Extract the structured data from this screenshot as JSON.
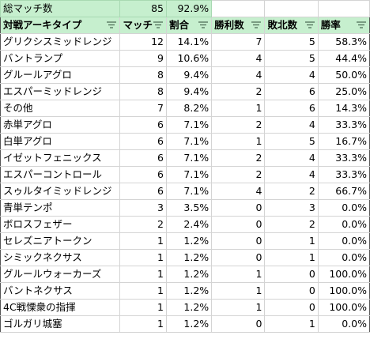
{
  "summary": {
    "label": "総マッチ数",
    "matches": "85",
    "percent": "92.9%"
  },
  "headers": [
    {
      "label": "対戦アーキタイプ",
      "filter_icon": "filter-dropdown-icon"
    },
    {
      "label": "マッチ",
      "filter_icon": "filter-dropdown-icon"
    },
    {
      "label": "割合",
      "filter_icon": "filter-dropdown-icon"
    },
    {
      "label": "勝利数",
      "filter_icon": "filter-dropdown-icon"
    },
    {
      "label": "敗北数",
      "filter_icon": "filter-dropdown-icon"
    },
    {
      "label": "勝率",
      "filter_icon": "filter-dropdown-icon"
    }
  ],
  "rows": [
    [
      "グリクシスミッドレンジ",
      "12",
      "14.1%",
      "7",
      "5",
      "58.3%"
    ],
    [
      "バントランプ",
      "9",
      "10.6%",
      "4",
      "5",
      "44.4%"
    ],
    [
      "グルールアグロ",
      "8",
      "9.4%",
      "4",
      "4",
      "50.0%"
    ],
    [
      "エスパーミッドレンジ",
      "8",
      "9.4%",
      "2",
      "6",
      "25.0%"
    ],
    [
      "その他",
      "7",
      "8.2%",
      "1",
      "6",
      "14.3%"
    ],
    [
      "赤単アグロ",
      "6",
      "7.1%",
      "2",
      "4",
      "33.3%"
    ],
    [
      "白単アグロ",
      "6",
      "7.1%",
      "1",
      "5",
      "16.7%"
    ],
    [
      "イゼットフェニックス",
      "6",
      "7.1%",
      "2",
      "4",
      "33.3%"
    ],
    [
      "エスパーコントロール",
      "6",
      "7.1%",
      "2",
      "4",
      "33.3%"
    ],
    [
      "スゥルタイミッドレンジ",
      "6",
      "7.1%",
      "4",
      "2",
      "66.7%"
    ],
    [
      "青単テンポ",
      "3",
      "3.5%",
      "0",
      "3",
      "0.0%"
    ],
    [
      "ボロスフェザー",
      "2",
      "2.4%",
      "0",
      "2",
      "0.0%"
    ],
    [
      "セレズニアトークン",
      "1",
      "1.2%",
      "0",
      "1",
      "0.0%"
    ],
    [
      "シミックネクサス",
      "1",
      "1.2%",
      "0",
      "1",
      "0.0%"
    ],
    [
      "グルールウォーカーズ",
      "1",
      "1.2%",
      "1",
      "0",
      "100.0%"
    ],
    [
      "バントネクサス",
      "1",
      "1.2%",
      "1",
      "0",
      "100.0%"
    ],
    [
      "4C戦慄衆の指揮",
      "1",
      "1.2%",
      "1",
      "0",
      "100.0%"
    ],
    [
      "ゴルガリ城塞",
      "1",
      "1.2%",
      "0",
      "1",
      "0.0%"
    ]
  ],
  "colors": {
    "header_fill": "#c6efce",
    "header_border": "#2f7d3b",
    "grid": "#d4d4d4"
  }
}
